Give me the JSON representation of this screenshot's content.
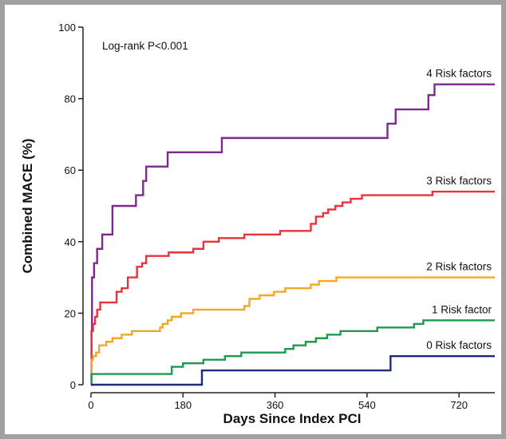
{
  "chart_data": {
    "type": "line",
    "step": true,
    "title": "",
    "xlabel": "Days Since Index PCI",
    "ylabel": "Combined MACE (%)",
    "xlim": [
      0,
      790
    ],
    "ylim": [
      0,
      100
    ],
    "xticks": [
      0,
      180,
      360,
      540,
      720
    ],
    "yticks": [
      0,
      20,
      40,
      60,
      80,
      100
    ],
    "grid": false,
    "legend": "inline labels at right end of curves",
    "annotation": "Log-rank P<0.001",
    "series": [
      {
        "name": "4 Risk factors",
        "color": "#7b2a8c",
        "points": [
          [
            0,
            0
          ],
          [
            1,
            15
          ],
          [
            2,
            30
          ],
          [
            6,
            34
          ],
          [
            12,
            38
          ],
          [
            22,
            42
          ],
          [
            42,
            50
          ],
          [
            88,
            53
          ],
          [
            102,
            57
          ],
          [
            108,
            61
          ],
          [
            150,
            65
          ],
          [
            256,
            69
          ],
          [
            472,
            69
          ],
          [
            580,
            73
          ],
          [
            596,
            77
          ],
          [
            660,
            81
          ],
          [
            672,
            84
          ],
          [
            790,
            84
          ]
        ]
      },
      {
        "name": "3 Risk factors",
        "color": "#e8323c",
        "points": [
          [
            0,
            0
          ],
          [
            1,
            15
          ],
          [
            4,
            17
          ],
          [
            8,
            19
          ],
          [
            12,
            21
          ],
          [
            18,
            23
          ],
          [
            38,
            23
          ],
          [
            50,
            26
          ],
          [
            60,
            27
          ],
          [
            72,
            30
          ],
          [
            90,
            33
          ],
          [
            100,
            34
          ],
          [
            108,
            36
          ],
          [
            140,
            36
          ],
          [
            152,
            37
          ],
          [
            200,
            38
          ],
          [
            220,
            40
          ],
          [
            250,
            41
          ],
          [
            300,
            42
          ],
          [
            370,
            43
          ],
          [
            430,
            45
          ],
          [
            440,
            47
          ],
          [
            454,
            48
          ],
          [
            464,
            49
          ],
          [
            478,
            50
          ],
          [
            492,
            51
          ],
          [
            508,
            52
          ],
          [
            530,
            53
          ],
          [
            600,
            53
          ],
          [
            668,
            54
          ],
          [
            790,
            54
          ]
        ]
      },
      {
        "name": "2 Risk factors",
        "color": "#f5a623",
        "points": [
          [
            0,
            0
          ],
          [
            1,
            7
          ],
          [
            4,
            8
          ],
          [
            10,
            9
          ],
          [
            16,
            11
          ],
          [
            30,
            12
          ],
          [
            42,
            13
          ],
          [
            60,
            14
          ],
          [
            80,
            15
          ],
          [
            135,
            16
          ],
          [
            140,
            17
          ],
          [
            150,
            18
          ],
          [
            158,
            19
          ],
          [
            176,
            20
          ],
          [
            200,
            21
          ],
          [
            300,
            22
          ],
          [
            310,
            24
          ],
          [
            330,
            25
          ],
          [
            358,
            26
          ],
          [
            380,
            27
          ],
          [
            430,
            28
          ],
          [
            446,
            29
          ],
          [
            480,
            30
          ],
          [
            540,
            30
          ],
          [
            546,
            30
          ],
          [
            790,
            30
          ]
        ]
      },
      {
        "name": "1 Risk factor",
        "color": "#1f9a4b",
        "points": [
          [
            0,
            0
          ],
          [
            1,
            3
          ],
          [
            140,
            3
          ],
          [
            158,
            5
          ],
          [
            180,
            6
          ],
          [
            220,
            7
          ],
          [
            262,
            8
          ],
          [
            294,
            9
          ],
          [
            340,
            9
          ],
          [
            380,
            10
          ],
          [
            396,
            11
          ],
          [
            420,
            12
          ],
          [
            440,
            13
          ],
          [
            462,
            14
          ],
          [
            488,
            15
          ],
          [
            540,
            15
          ],
          [
            560,
            16
          ],
          [
            620,
            16
          ],
          [
            632,
            17
          ],
          [
            650,
            18
          ],
          [
            790,
            18
          ]
        ]
      },
      {
        "name": "0 Risk factors",
        "color": "#1f2a7a",
        "points": [
          [
            0,
            0
          ],
          [
            1,
            0
          ],
          [
            215,
            0
          ],
          [
            217,
            4
          ],
          [
            584,
            4
          ],
          [
            586,
            8
          ],
          [
            790,
            8
          ]
        ]
      }
    ]
  }
}
